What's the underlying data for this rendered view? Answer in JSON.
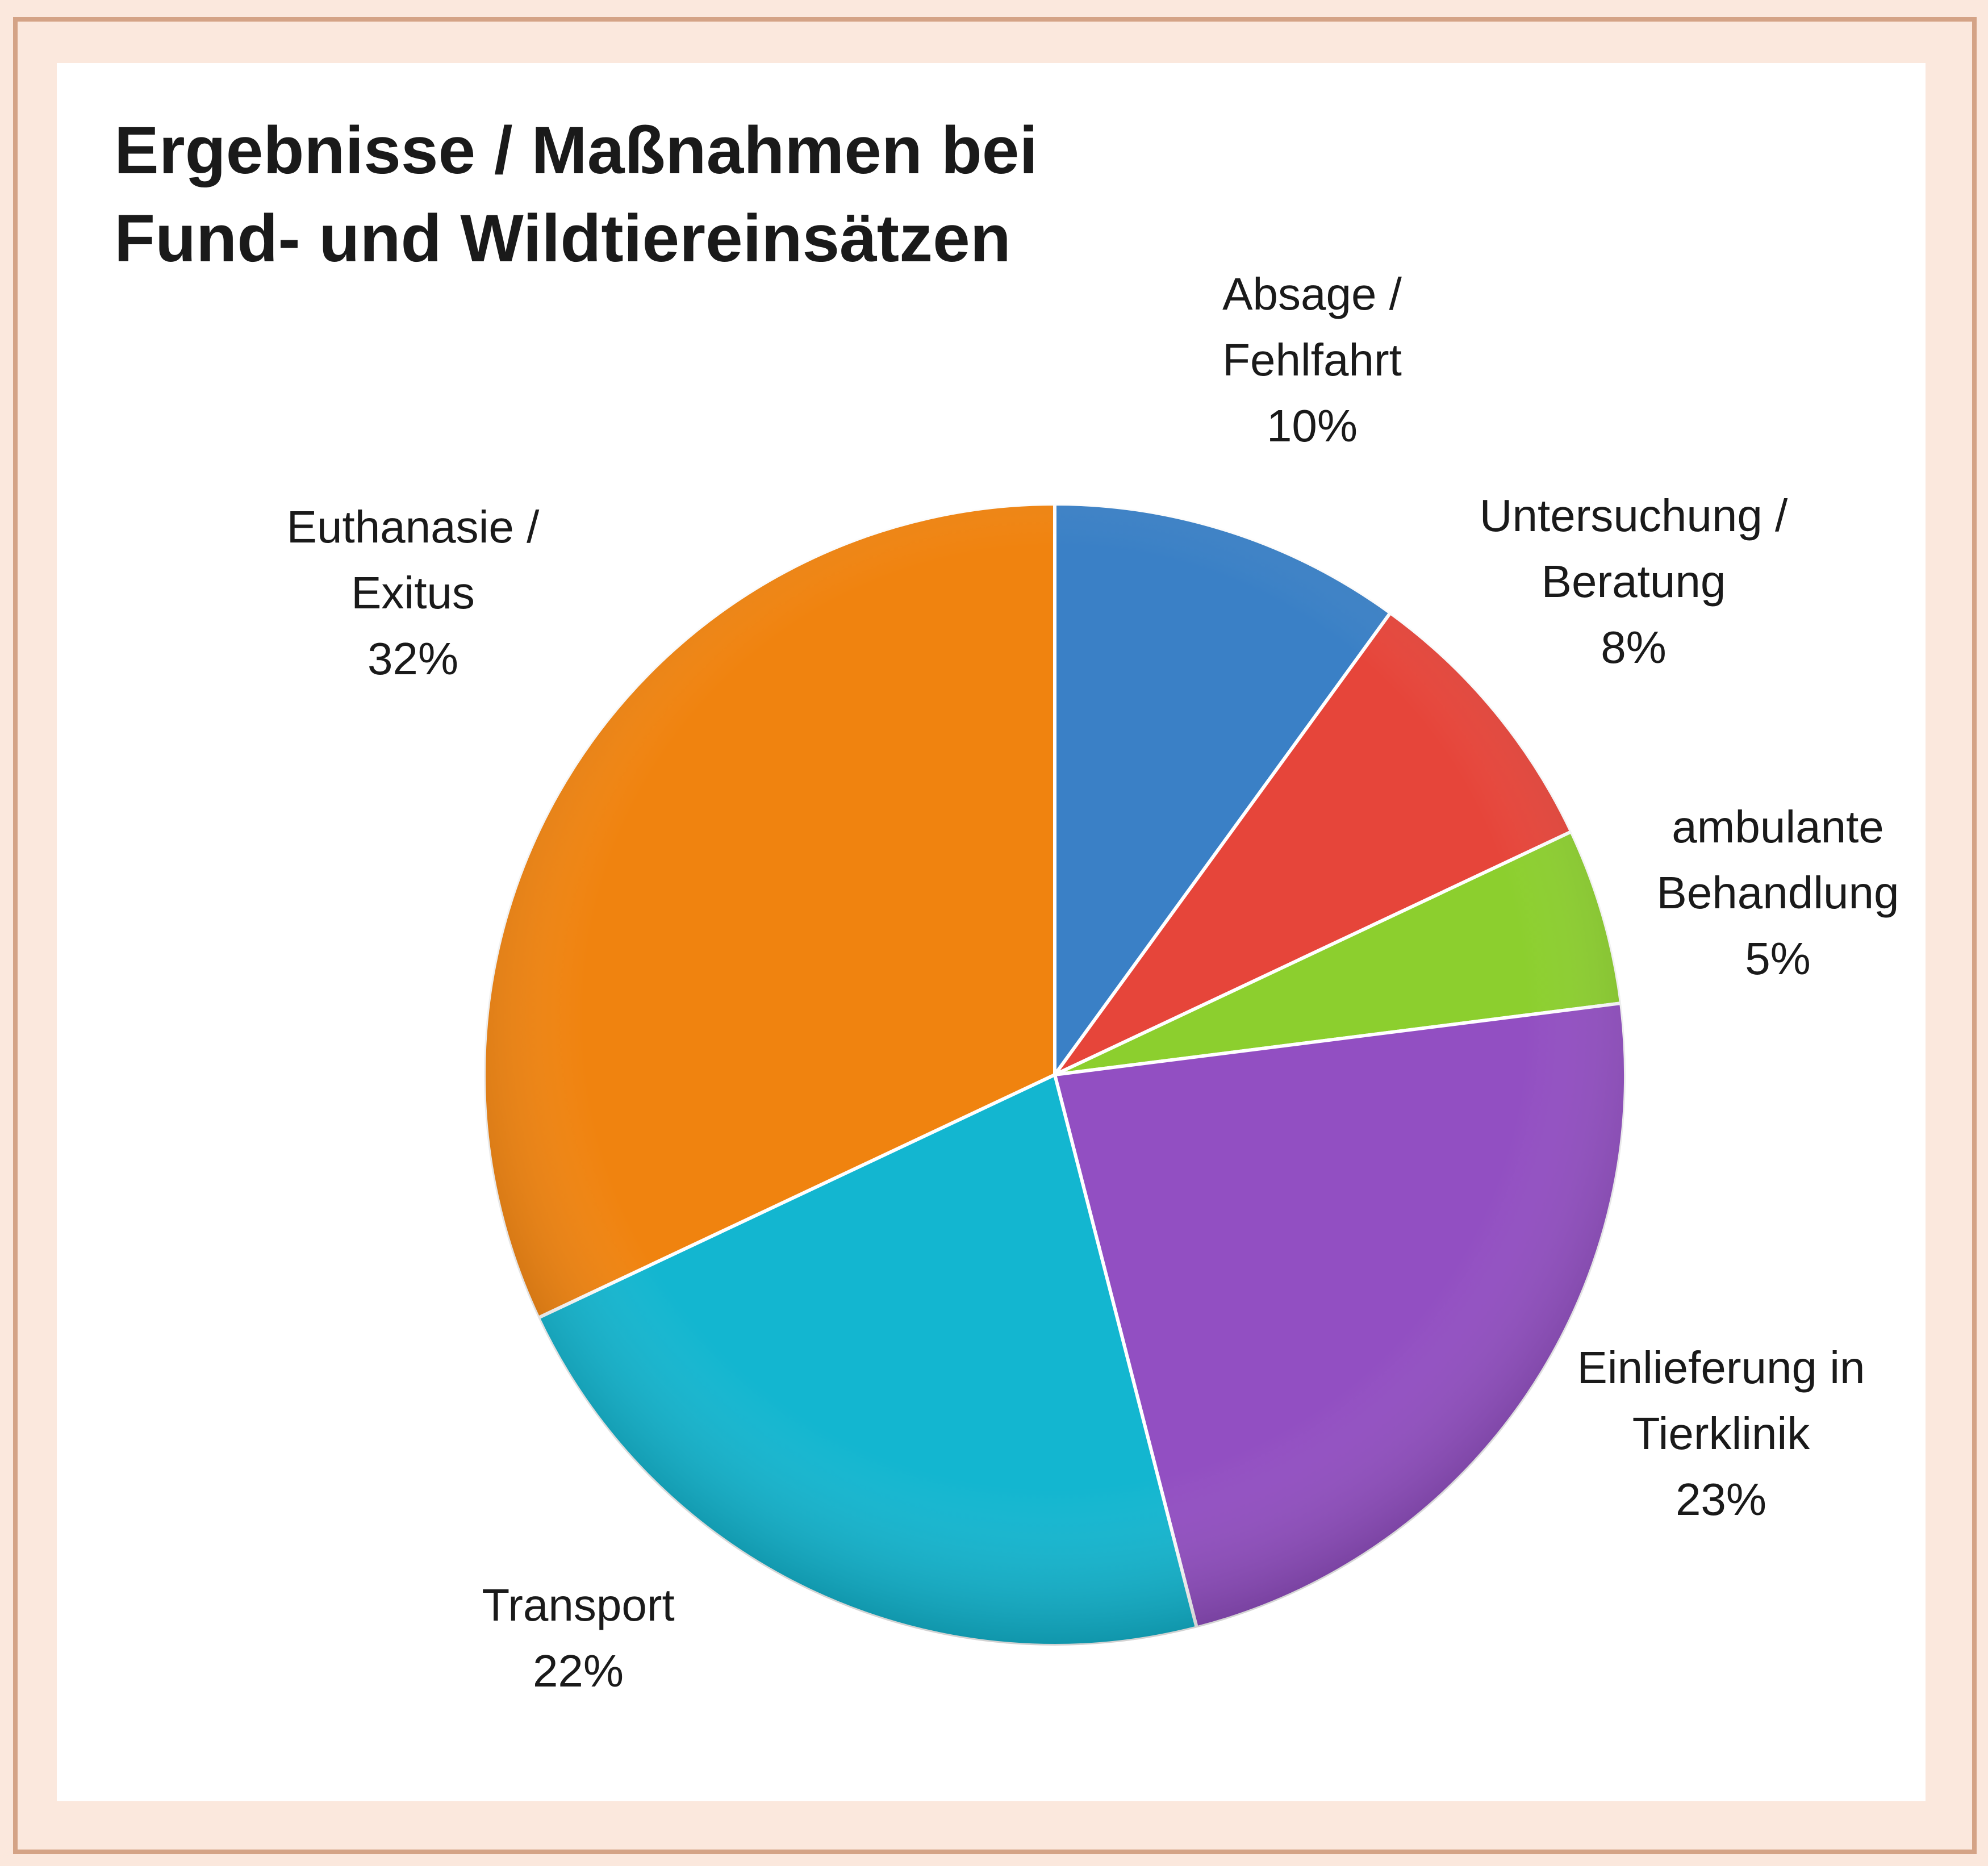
{
  "chart_data": {
    "type": "pie",
    "title": [
      "Ergebnisse / Maßnahmen bei",
      "Fund- und Wildtiereinsätzen"
    ],
    "categories": [
      [
        "Absage /",
        "Fehlfahrt"
      ],
      [
        "Untersuchung /",
        "Beratung"
      ],
      [
        "ambulante",
        "Behandlung"
      ],
      [
        "Einlieferung in",
        "Tierklinik"
      ],
      [
        "Transport"
      ],
      [
        "Euthanasie /",
        "Exitus"
      ]
    ],
    "values": [
      10,
      8,
      5,
      23,
      22,
      32
    ],
    "value_labels": [
      "10%",
      "8%",
      "5%",
      "23%",
      "22%",
      "32%"
    ],
    "colors": [
      "#3a80c6",
      "#e6453a",
      "#8ccf2e",
      "#924fc2",
      "#13b6d0",
      "#f0830f"
    ]
  }
}
